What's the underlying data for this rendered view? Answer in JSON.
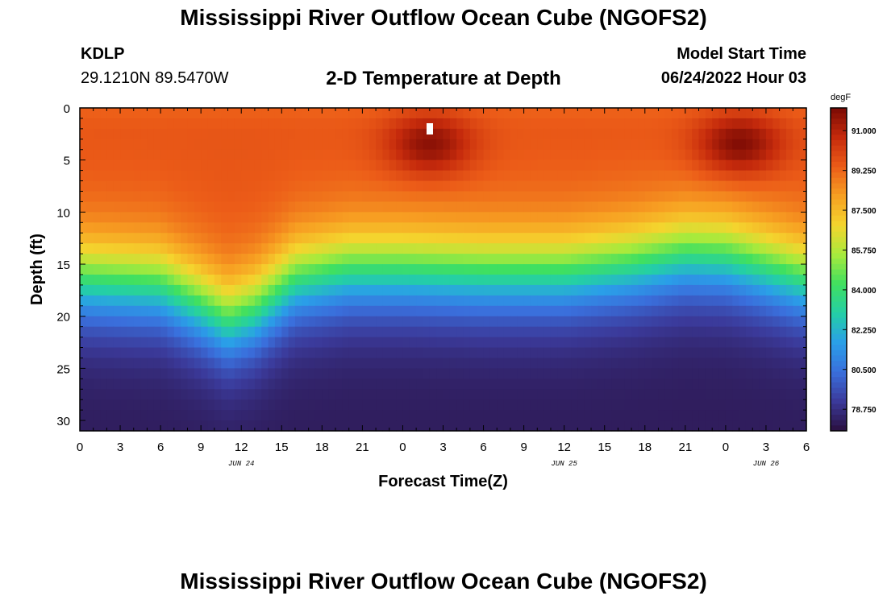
{
  "header": {
    "title": "Mississippi River Outflow Ocean Cube (NGOFS2)",
    "station_id": "KDLP",
    "station_coords": "29.1210N  89.5470W",
    "subtitle": "2-D Temperature at Depth",
    "model_start_label": "Model Start Time",
    "model_start_value": "06/24/2022 Hour 03"
  },
  "footer": {
    "title": "Mississippi River Outflow Ocean Cube (NGOFS2)"
  },
  "colors": {
    "colormap": [
      "#2a0f3f",
      "#3b3a9a",
      "#3a6fdc",
      "#2a9fe8",
      "#24cfa6",
      "#40e060",
      "#a8ea3c",
      "#f4d52e",
      "#f79f22",
      "#ec5c18",
      "#c52a0c",
      "#7a0a04"
    ]
  },
  "chart_data": {
    "type": "heatmap",
    "xlabel": "Forecast Time(Z)",
    "ylabel": "Depth (ft)",
    "xlim": [
      0,
      54
    ],
    "ylim": [
      31,
      0
    ],
    "x_tick_values": [
      0,
      3,
      6,
      9,
      12,
      15,
      18,
      21,
      24,
      27,
      30,
      33,
      36,
      39,
      42,
      45,
      48,
      51,
      54
    ],
    "x_tick_labels": [
      "0",
      "3",
      "6",
      "9",
      "12",
      "15",
      "18",
      "21",
      "0",
      "3",
      "6",
      "9",
      "12",
      "15",
      "18",
      "21",
      "0",
      "3",
      "6"
    ],
    "y_tick_values": [
      0,
      5,
      10,
      15,
      20,
      25,
      30
    ],
    "y_tick_labels": [
      "0",
      "5",
      "10",
      "15",
      "20",
      "25",
      "30"
    ],
    "date_labels": [
      {
        "x": 12,
        "text": "JUN 24"
      },
      {
        "x": 36,
        "text": "JUN 25"
      },
      {
        "x": 51,
        "text": "JUN 26"
      }
    ],
    "colorbar": {
      "unit": "degF",
      "min": 77.8,
      "max": 92.0,
      "tick_values": [
        91.0,
        89.25,
        87.5,
        85.75,
        84.0,
        82.25,
        80.5,
        78.75
      ],
      "tick_labels": [
        "91.000",
        "89.250",
        "87.500",
        "85.750",
        "84.000",
        "82.250",
        "80.500",
        "78.750"
      ]
    },
    "grid": false,
    "surface_temp_degF": 89.6,
    "bottom_temp_degF": 78.2,
    "thermocline_depth_ft": [
      {
        "x": 0,
        "depth": 16.5
      },
      {
        "x": 6,
        "depth": 17.0
      },
      {
        "x": 9,
        "depth": 19.0
      },
      {
        "x": 11,
        "depth": 20.5
      },
      {
        "x": 13,
        "depth": 19.5
      },
      {
        "x": 16,
        "depth": 16.5
      },
      {
        "x": 20,
        "depth": 15.5
      },
      {
        "x": 24,
        "depth": 15.5
      },
      {
        "x": 30,
        "depth": 15.8
      },
      {
        "x": 36,
        "depth": 15.8
      },
      {
        "x": 41,
        "depth": 15.0
      },
      {
        "x": 45,
        "depth": 14.0
      },
      {
        "x": 48,
        "depth": 14.2
      },
      {
        "x": 51,
        "depth": 15.3
      },
      {
        "x": 54,
        "depth": 16.5
      }
    ],
    "warm_cores": [
      {
        "x": 26,
        "depth": 3.5,
        "temp_degF": 91.8
      },
      {
        "x": 49,
        "depth": 3.5,
        "temp_degF": 92.0
      }
    ]
  }
}
